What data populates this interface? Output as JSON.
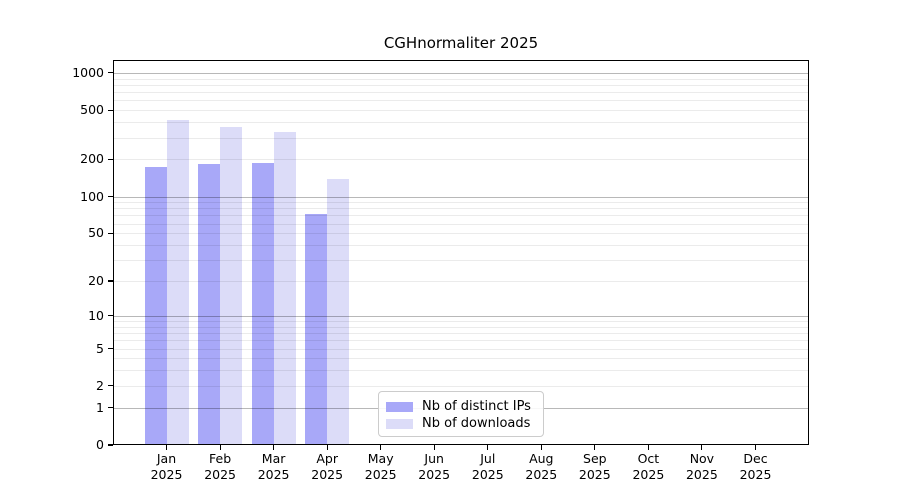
{
  "figure": {
    "background": "#ffffff"
  },
  "chart_data": {
    "type": "bar",
    "title": "CGHnormaliter 2025",
    "categories": [
      "Jan",
      "Feb",
      "Mar",
      "Apr",
      "May",
      "Jun",
      "Jul",
      "Aug",
      "Sep",
      "Oct",
      "Nov",
      "Dec"
    ],
    "category_year": "2025",
    "series": [
      {
        "name": "Nb of distinct IPs",
        "color": "#a8a8f8",
        "values": [
          175,
          185,
          188,
          72,
          0,
          0,
          0,
          0,
          0,
          0,
          0,
          0
        ]
      },
      {
        "name": "Nb of downloads",
        "color": "#dcdcf8",
        "values": [
          415,
          365,
          335,
          140,
          0,
          0,
          0,
          0,
          0,
          0,
          0,
          0
        ]
      }
    ],
    "y_axis": {
      "scale": "log1p",
      "tick_values": [
        0,
        1,
        2,
        5,
        10,
        20,
        50,
        100,
        200,
        500,
        1000
      ],
      "tick_labels": [
        "0",
        "1",
        "2",
        "5",
        "10",
        "20",
        "50",
        "100",
        "200",
        "500",
        "1000"
      ],
      "max": 1259
    },
    "x_axis": {
      "tick_label_year": "2025"
    },
    "grid": {
      "major_values": [
        1,
        10,
        100,
        1000
      ],
      "minor_values": [
        2,
        3,
        4,
        5,
        6,
        7,
        8,
        9,
        20,
        30,
        40,
        50,
        60,
        70,
        80,
        90,
        200,
        300,
        400,
        500,
        600,
        700,
        800,
        900
      ],
      "major_color": "rgba(0,0,0,0.28)",
      "minor_color": "rgba(0,0,0,0.08)"
    },
    "legend": {
      "position": "lower-center",
      "entries": [
        "Nb of distinct IPs",
        "Nb of downloads"
      ]
    }
  }
}
